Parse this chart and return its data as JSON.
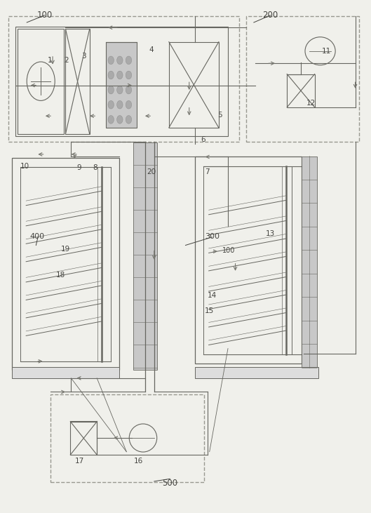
{
  "bg_color": "#f0f0eb",
  "line_color": "#999990",
  "dark_line": "#666660",
  "arrow_color": "#777770",
  "label_color": "#444440",
  "fig_width": 5.29,
  "fig_height": 7.31,
  "dpi": 100
}
